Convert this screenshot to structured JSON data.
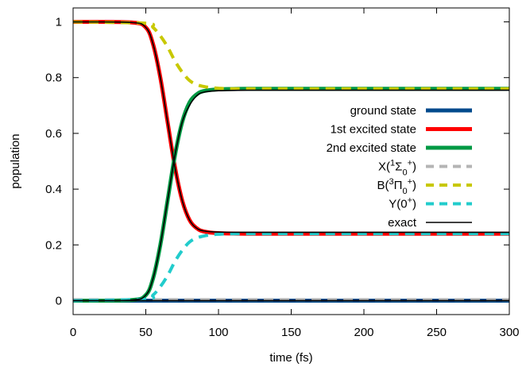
{
  "chart_data": {
    "type": "line",
    "xlabel": "time (fs)",
    "ylabel": "population",
    "xlim": [
      0,
      300
    ],
    "ylim": [
      -0.05,
      1.05
    ],
    "x_ticks": [
      "0",
      "50",
      "100",
      "150",
      "200",
      "250",
      "300"
    ],
    "y_ticks": [
      "0",
      "0.2",
      "0.4",
      "0.6",
      "0.8",
      "1"
    ],
    "grid": false,
    "legend_position": "right",
    "series": [
      {
        "name": "ground state",
        "color": "#004a8c",
        "style": "solid",
        "x": [
          0,
          300
        ],
        "y": [
          0.0,
          0.0
        ]
      },
      {
        "name": "1st excited state",
        "color": "#ff0000",
        "style": "solid",
        "x": [
          0,
          40,
          50,
          55,
          60,
          65,
          70,
          75,
          80,
          85,
          90,
          100,
          120,
          150,
          200,
          250,
          300
        ],
        "y": [
          1.0,
          0.998,
          0.98,
          0.92,
          0.8,
          0.64,
          0.48,
          0.36,
          0.29,
          0.26,
          0.248,
          0.242,
          0.24,
          0.24,
          0.24,
          0.24,
          0.24
        ]
      },
      {
        "name": "2nd excited state",
        "color": "#009944",
        "style": "solid",
        "x": [
          0,
          40,
          50,
          55,
          60,
          65,
          70,
          75,
          80,
          85,
          90,
          100,
          120,
          150,
          200,
          250,
          300
        ],
        "y": [
          0.0,
          0.002,
          0.02,
          0.08,
          0.2,
          0.36,
          0.52,
          0.64,
          0.71,
          0.74,
          0.752,
          0.758,
          0.76,
          0.76,
          0.76,
          0.76,
          0.76
        ]
      },
      {
        "name": "X(¹Σ0+)",
        "color": "#b4b4b4",
        "style": "dashed",
        "x": [
          0,
          300
        ],
        "y": [
          0.003,
          0.003
        ]
      },
      {
        "name": "B(³Π0+)",
        "color": "#c8c800",
        "style": "dashed",
        "x": [
          0,
          50,
          55,
          60,
          65,
          70,
          75,
          80,
          85,
          90,
          95,
          100,
          110,
          150,
          200,
          250,
          300
        ],
        "y": [
          1.0,
          0.995,
          0.98,
          0.95,
          0.91,
          0.86,
          0.82,
          0.79,
          0.775,
          0.768,
          0.764,
          0.762,
          0.76,
          0.76,
          0.76,
          0.76,
          0.76
        ]
      },
      {
        "name": "Y(0+)",
        "color": "#22cccc",
        "style": "dashed",
        "x": [
          0,
          50,
          55,
          60,
          65,
          70,
          75,
          80,
          85,
          90,
          95,
          100,
          110,
          150,
          200,
          250,
          300
        ],
        "y": [
          0.0,
          0.005,
          0.02,
          0.05,
          0.09,
          0.14,
          0.18,
          0.21,
          0.225,
          0.232,
          0.236,
          0.238,
          0.24,
          0.24,
          0.24,
          0.24,
          0.24
        ]
      },
      {
        "name": "exact",
        "color": "#000000",
        "style": "thin",
        "x": [
          0,
          40,
          50,
          55,
          60,
          65,
          70,
          75,
          80,
          85,
          90,
          100,
          120,
          150,
          200,
          250,
          300
        ],
        "y_a": [
          1.0,
          0.998,
          0.98,
          0.92,
          0.8,
          0.64,
          0.48,
          0.36,
          0.29,
          0.26,
          0.25,
          0.246,
          0.245,
          0.245,
          0.245,
          0.245,
          0.245
        ],
        "y_b": [
          0.0,
          0.002,
          0.02,
          0.08,
          0.2,
          0.36,
          0.52,
          0.64,
          0.7,
          0.735,
          0.748,
          0.753,
          0.755,
          0.755,
          0.755,
          0.755,
          0.755
        ],
        "y_c": [
          0.0,
          0.0,
          0.0,
          0.0,
          0.0,
          0.0,
          0.0,
          0.0,
          0.0,
          0.0,
          0.0,
          0.0,
          0.0,
          0.0,
          0.0,
          0.0,
          0.0
        ]
      }
    ],
    "legend": [
      {
        "label_parts": [
          {
            "t": "ground state"
          }
        ],
        "color": "#004a8c",
        "style": "solid"
      },
      {
        "label_parts": [
          {
            "t": "1st excited state"
          }
        ],
        "color": "#ff0000",
        "style": "solid"
      },
      {
        "label_parts": [
          {
            "t": "2nd excited state"
          }
        ],
        "color": "#009944",
        "style": "solid"
      },
      {
        "label_parts": [
          {
            "t": "X("
          },
          {
            "t": "1",
            "sup": true
          },
          {
            "t": "Σ"
          },
          {
            "t": "0",
            "sub": true
          },
          {
            "t": "+",
            "sup": true
          },
          {
            "t": ")"
          }
        ],
        "color": "#b4b4b4",
        "style": "dashed"
      },
      {
        "label_parts": [
          {
            "t": "B("
          },
          {
            "t": "3",
            "sup": true
          },
          {
            "t": "Π"
          },
          {
            "t": "0",
            "sub": true
          },
          {
            "t": "+",
            "sup": true
          },
          {
            "t": ")"
          }
        ],
        "color": "#c8c800",
        "style": "dashed"
      },
      {
        "label_parts": [
          {
            "t": "Y(0"
          },
          {
            "t": "+",
            "sup": true
          },
          {
            "t": ")"
          }
        ],
        "color": "#22cccc",
        "style": "dashed"
      },
      {
        "label_parts": [
          {
            "t": "exact"
          }
        ],
        "color": "#000000",
        "style": "thin"
      }
    ]
  }
}
